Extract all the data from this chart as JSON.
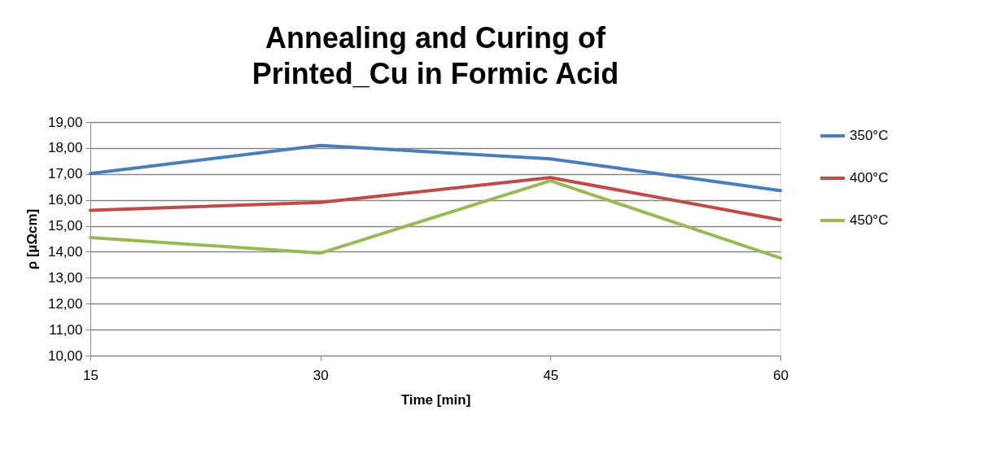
{
  "chart_data": {
    "type": "line",
    "title": "Annealing and Curing of Printed_Cu in Formic Acid",
    "xlabel": "Time [min]",
    "ylabel": "ρ [µΩcm]",
    "x": [
      15,
      30,
      45,
      60
    ],
    "series": [
      {
        "name": "350°C",
        "color": "#4a7ebb",
        "values": [
          17.02,
          18.1,
          17.58,
          16.36
        ]
      },
      {
        "name": "400°C",
        "color": "#be4b48",
        "values": [
          15.6,
          15.9,
          16.86,
          15.23
        ]
      },
      {
        "name": "450°C",
        "color": "#98b954",
        "values": [
          14.55,
          13.95,
          16.74,
          13.76
        ]
      }
    ],
    "xlim": [
      15,
      60
    ],
    "xticks": [
      15,
      30,
      45,
      60
    ],
    "ylim": [
      10,
      19
    ],
    "yticks": [
      {
        "value": 10,
        "label": "10,00"
      },
      {
        "value": 11,
        "label": "11,00"
      },
      {
        "value": 12,
        "label": "12,00"
      },
      {
        "value": 13,
        "label": "13,00"
      },
      {
        "value": 14,
        "label": "14,00"
      },
      {
        "value": 15,
        "label": "15,00"
      },
      {
        "value": 16,
        "label": "16,00"
      },
      {
        "value": 17,
        "label": "17,00"
      },
      {
        "value": 18,
        "label": "18,00"
      },
      {
        "value": 19,
        "label": "19,00"
      }
    ],
    "grid": "y",
    "legend": "right",
    "marker": "none",
    "line_style": "solid"
  }
}
